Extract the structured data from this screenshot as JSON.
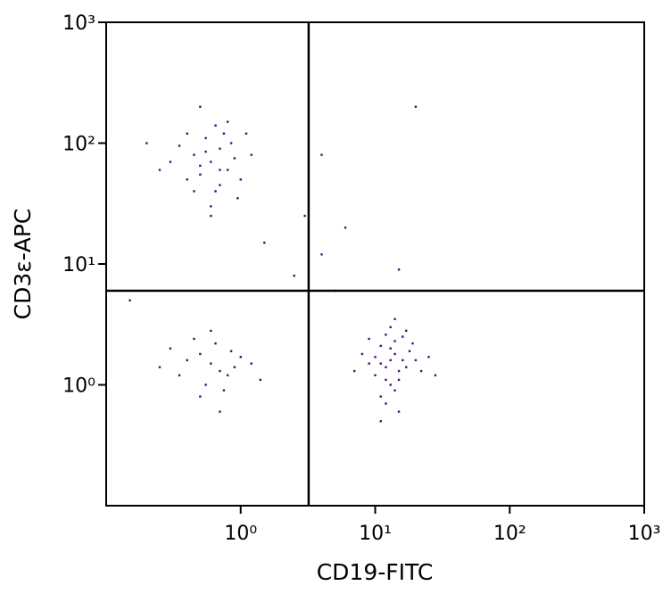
{
  "chart_data": {
    "type": "scatter",
    "x_label": "CD19-FITC",
    "y_label": "CD3ε-APC",
    "log_x": true,
    "log_y": true,
    "xlim": [
      0.1,
      1000
    ],
    "ylim": [
      0.1,
      1000
    ],
    "xticks": [
      {
        "value": 1,
        "label": "10⁰"
      },
      {
        "value": 10,
        "label": "10¹"
      },
      {
        "value": 100,
        "label": "10²"
      },
      {
        "value": 1000,
        "label": "10³"
      }
    ],
    "yticks": [
      {
        "value": 1,
        "label": "10⁰"
      },
      {
        "value": 10,
        "label": "10¹"
      },
      {
        "value": 100,
        "label": "10²"
      },
      {
        "value": 1000,
        "label": "10³"
      }
    ],
    "gate_x": 3.2,
    "gate_y": 6,
    "color": "#4b0c7e",
    "x": [
      0.6,
      0.5,
      0.7,
      0.8,
      0.45,
      0.65,
      0.55,
      0.9,
      0.4,
      0.75,
      0.6,
      0.35,
      1.0,
      0.5,
      0.7,
      0.85,
      0.3,
      0.55,
      0.65,
      0.95,
      0.4,
      1.2,
      0.25,
      0.6,
      0.8,
      0.5,
      0.2,
      1.1,
      0.7,
      0.45,
      0.6,
      0.7,
      0.5,
      0.8,
      0.4,
      0.9,
      0.65,
      0.55,
      1.0,
      0.35,
      0.75,
      1.2,
      0.3,
      0.6,
      0.85,
      0.5,
      1.4,
      0.25,
      0.7,
      0.45,
      13,
      12,
      14,
      11,
      15,
      13,
      10,
      16,
      12,
      14,
      11,
      17,
      9,
      13,
      18,
      12,
      15,
      10,
      14,
      20,
      11,
      16,
      8,
      13,
      22,
      12,
      19,
      9,
      15,
      25,
      7,
      14,
      28,
      11,
      17,
      2.5,
      4,
      5,
      1.5,
      20,
      3,
      15,
      6,
      0.15,
      4
    ],
    "y": [
      70,
      55,
      90,
      60,
      80,
      40,
      110,
      75,
      50,
      120,
      30,
      95,
      50,
      65,
      45,
      100,
      70,
      85,
      140,
      35,
      120,
      80,
      60,
      25,
      150,
      200,
      100,
      120,
      60,
      40,
      1.5,
      1.3,
      1.8,
      1.2,
      1.6,
      1.4,
      2.2,
      1.0,
      1.7,
      1.2,
      0.9,
      1.5,
      2.0,
      2.8,
      1.9,
      0.8,
      1.1,
      1.4,
      0.6,
      2.4,
      1.6,
      1.4,
      1.8,
      1.5,
      1.3,
      2.0,
      1.7,
      1.6,
      1.1,
      2.3,
      2.1,
      1.4,
      1.5,
      1.0,
      1.9,
      2.6,
      1.1,
      1.2,
      0.9,
      1.6,
      0.8,
      2.5,
      1.8,
      3.0,
      1.3,
      0.7,
      2.2,
      2.4,
      0.6,
      1.7,
      1.3,
      3.5,
      1.2,
      0.5,
      2.8,
      8,
      12,
      6,
      15,
      200,
      25,
      9,
      20,
      5,
      80
    ]
  }
}
